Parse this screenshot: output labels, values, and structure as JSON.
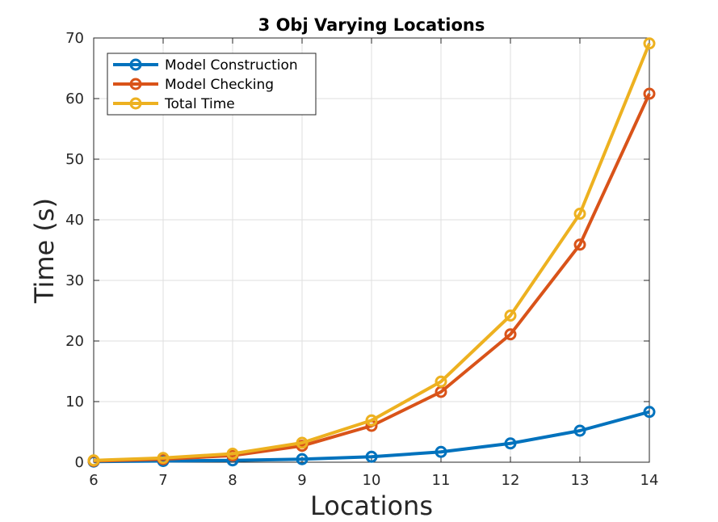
{
  "chart_data": {
    "type": "line",
    "title": "3 Obj Varying Locations",
    "xlabel": "Locations",
    "ylabel": "Time (s)",
    "x": [
      6,
      7,
      8,
      9,
      10,
      11,
      12,
      13,
      14
    ],
    "xlim": [
      6,
      14
    ],
    "ylim": [
      0,
      70
    ],
    "xticks": [
      6,
      7,
      8,
      9,
      10,
      11,
      12,
      13,
      14
    ],
    "yticks": [
      0,
      10,
      20,
      30,
      40,
      50,
      60,
      70
    ],
    "grid": true,
    "legend_position": "top-left",
    "marker": "circle",
    "series": [
      {
        "name": "Model Construction",
        "color": "#0072bd",
        "values": [
          0.1,
          0.2,
          0.3,
          0.5,
          0.9,
          1.7,
          3.1,
          5.2,
          8.3
        ]
      },
      {
        "name": "Model Checking",
        "color": "#d95319",
        "values": [
          0.2,
          0.5,
          1.1,
          2.7,
          6.0,
          11.6,
          21.1,
          35.9,
          60.8
        ]
      },
      {
        "name": "Total Time",
        "color": "#edb120",
        "values": [
          0.3,
          0.7,
          1.4,
          3.2,
          6.9,
          13.3,
          24.2,
          41.0,
          69.1
        ]
      }
    ]
  }
}
